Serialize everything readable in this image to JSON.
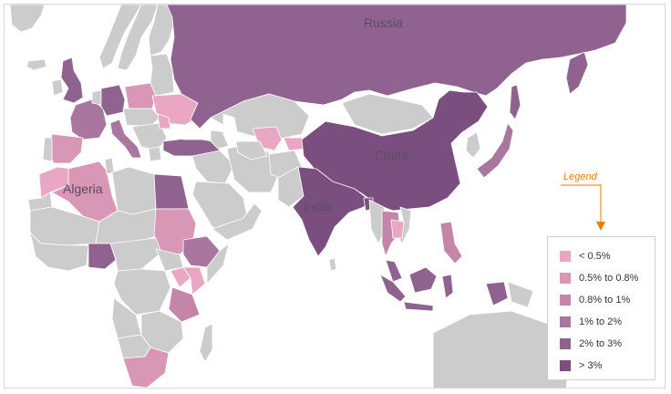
{
  "labels": {
    "russia": "Russia",
    "china": "China",
    "india": "India",
    "algeria": "Algeria"
  },
  "legend": {
    "caption": "Legend",
    "items": [
      {
        "label": "< 0.5%",
        "color": "#e9a7c3"
      },
      {
        "label": "0.5% to 0.8%",
        "color": "#d897b5"
      },
      {
        "label": "0.8% to 1%",
        "color": "#c585a8"
      },
      {
        "label": "1% to 2%",
        "color": "#a8769e"
      },
      {
        "label": "2% to 3%",
        "color": "#8f6290"
      },
      {
        "label": "> 3%",
        "color": "#7a4f80"
      }
    ]
  },
  "colors": {
    "land": "#cccccc",
    "border": "#ffffff",
    "legend_accent": "#e67e00"
  }
}
